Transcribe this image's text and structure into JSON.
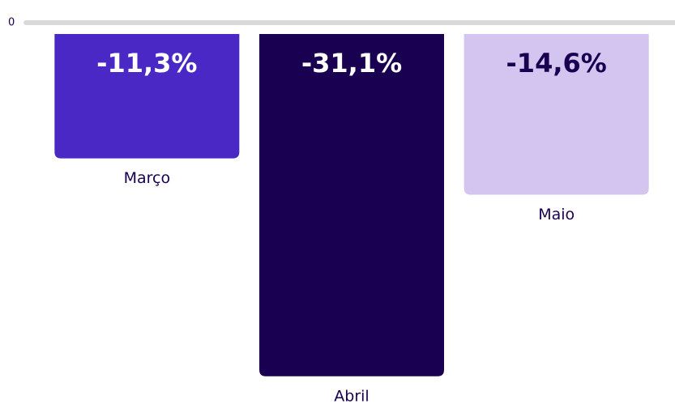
{
  "chart_data": {
    "type": "bar",
    "categories": [
      "Março",
      "Abril",
      "Maio"
    ],
    "values": [
      -11.3,
      -31.1,
      -14.6
    ],
    "value_labels": [
      "-11,3%",
      "-31,1%",
      "-14,6%"
    ],
    "colors": [
      "#4a28c6",
      "#1a0050",
      "#d4c4f0"
    ],
    "value_label_colors": [
      "#ffffff",
      "#ffffff",
      "#1a0050"
    ],
    "ylim": [
      -32,
      0
    ],
    "yticks": [
      0
    ]
  }
}
